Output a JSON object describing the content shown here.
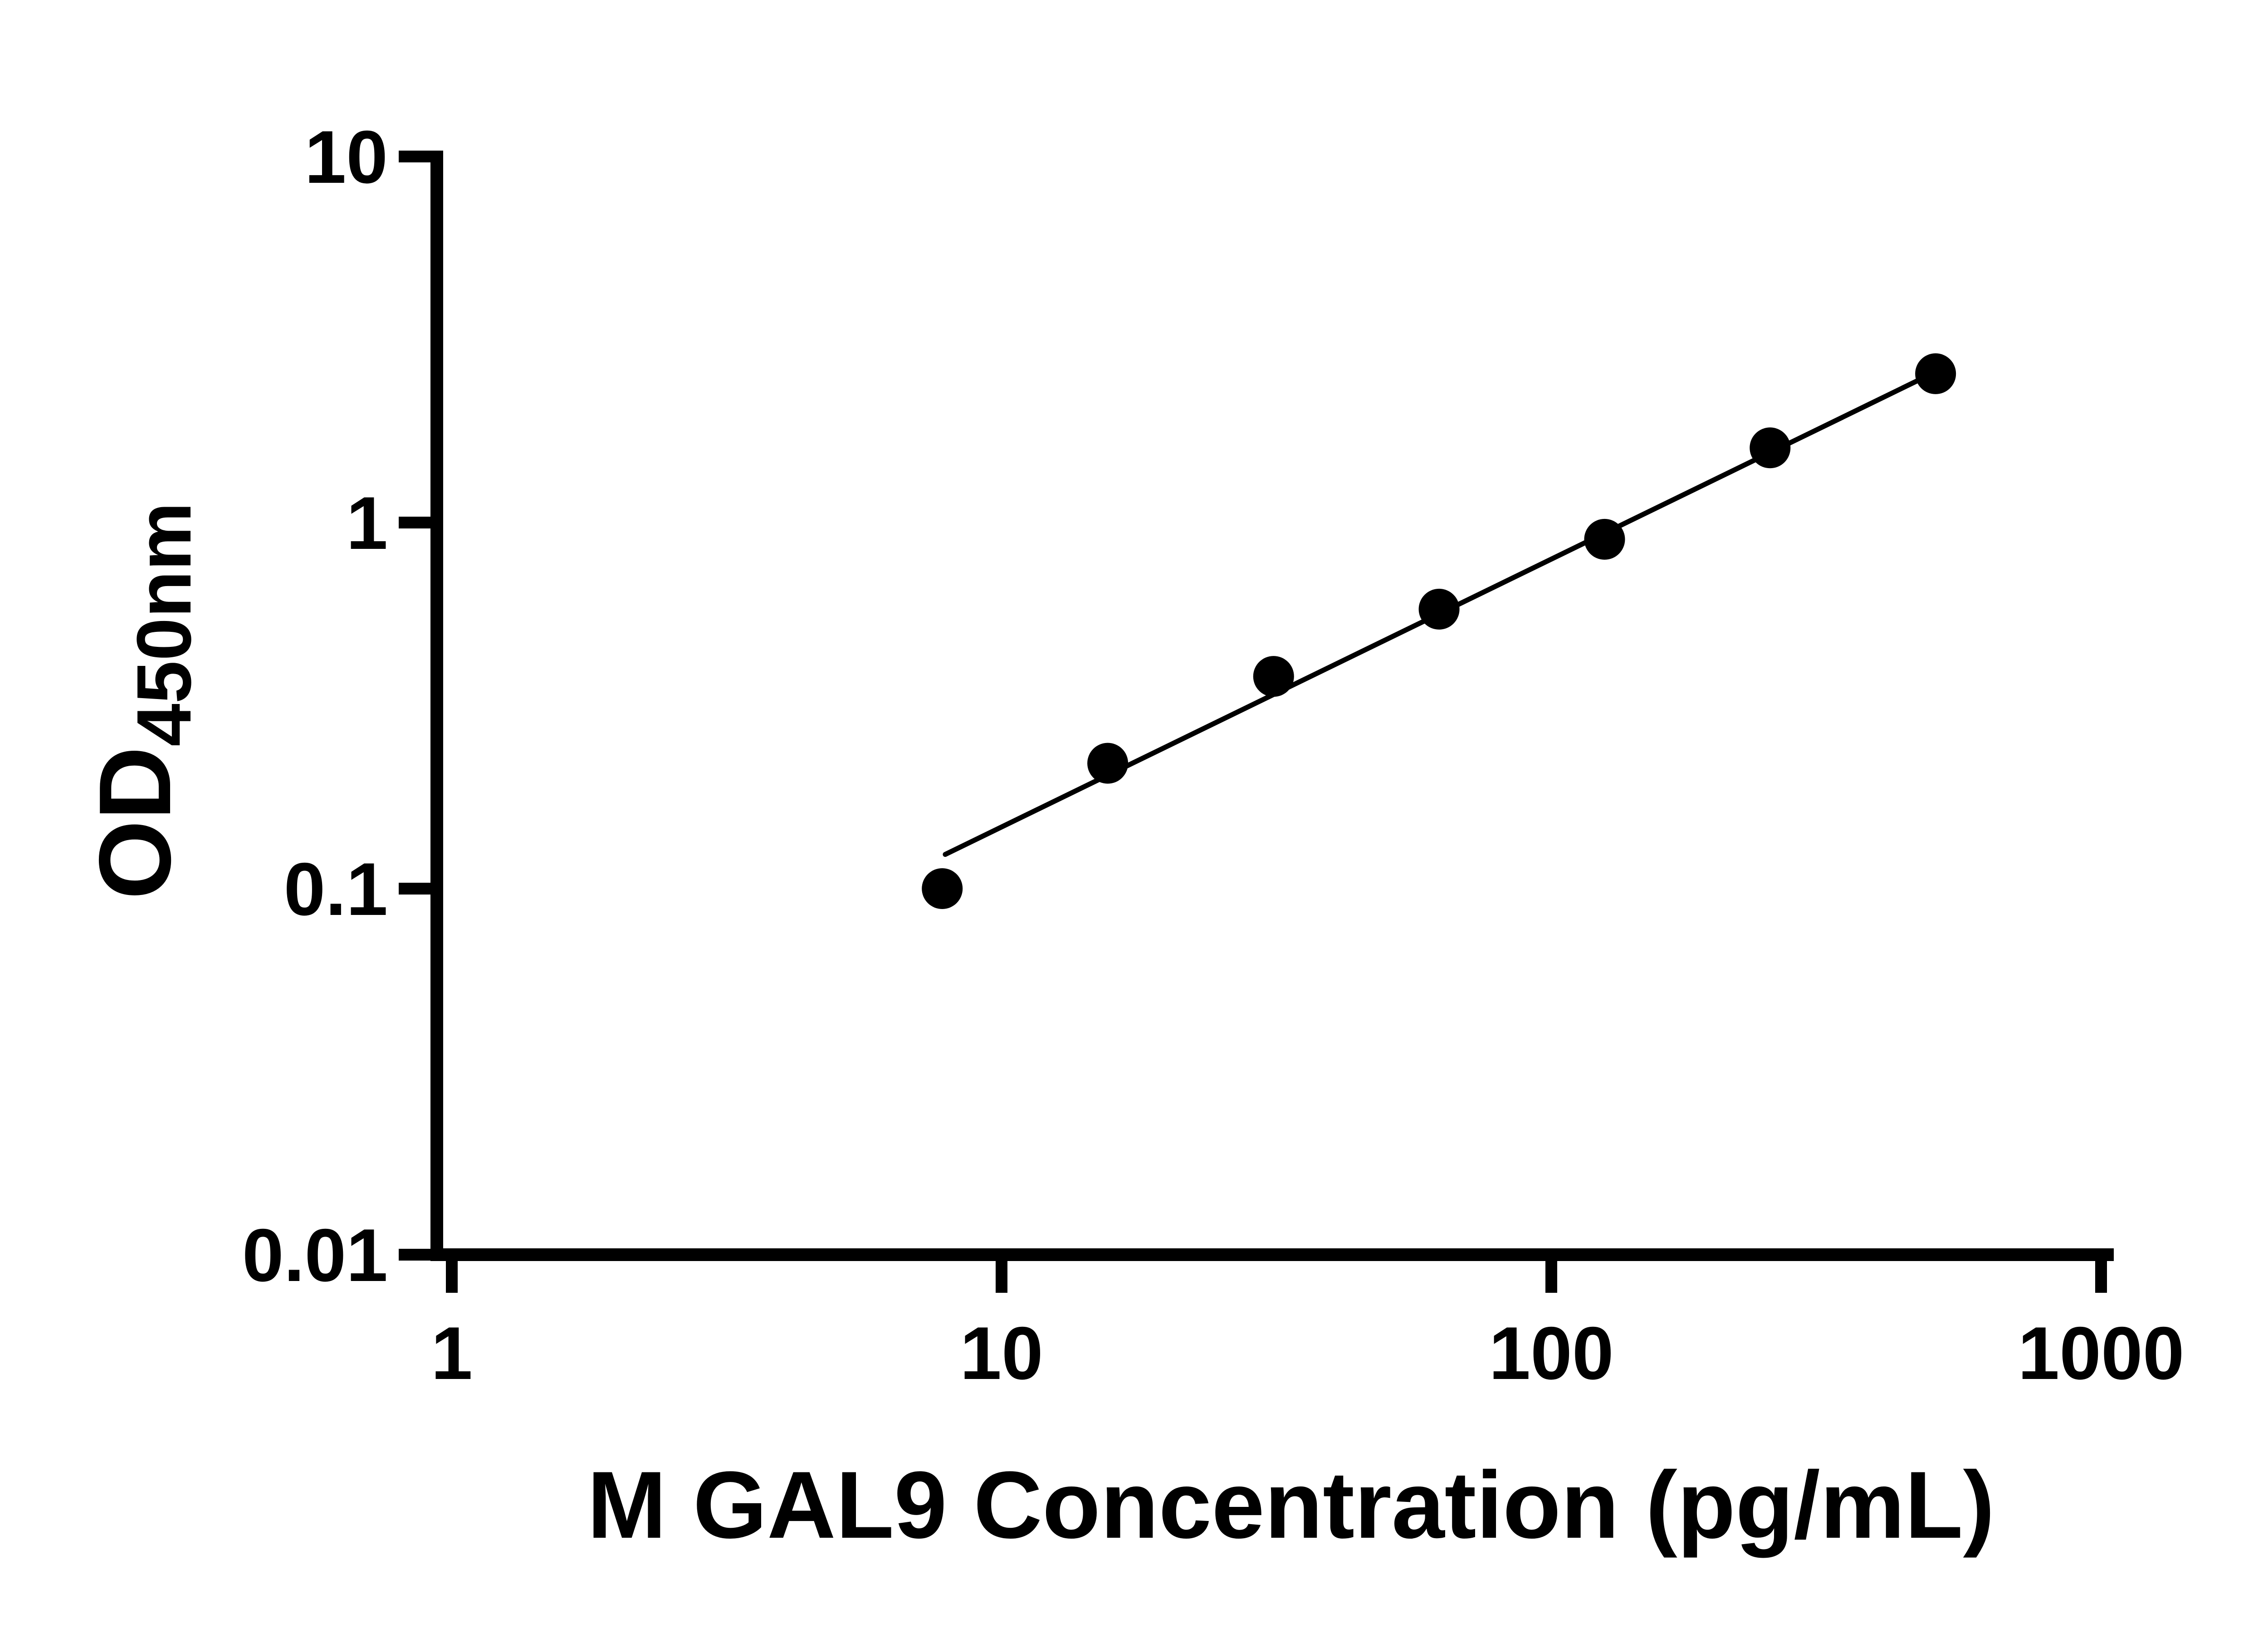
{
  "chart_data": {
    "type": "scatter",
    "title": "",
    "xlabel": "M GAL9 Concentration (pg/mL)",
    "ylabel_main": "OD",
    "ylabel_sub": "450nm",
    "x_scale": "log10",
    "y_scale": "log10",
    "xlim": [
      1,
      1000
    ],
    "ylim": [
      0.01,
      10
    ],
    "x_ticks": [
      "1",
      "10",
      "100",
      "1000"
    ],
    "y_ticks": [
      "0.01",
      "0.1",
      "1",
      "10"
    ],
    "grid": false,
    "legend": null,
    "axis_color": "#000000",
    "background": "#ffffff",
    "marker": {
      "shape": "circle",
      "color": "#000000"
    },
    "trendline": {
      "x1": 7.9,
      "y1": 0.124,
      "x2": 500,
      "y2": 2.58,
      "color": "#000000"
    },
    "points": [
      {
        "x": 7.8,
        "y": 0.1
      },
      {
        "x": 15.6,
        "y": 0.22
      },
      {
        "x": 31.25,
        "y": 0.38
      },
      {
        "x": 62.5,
        "y": 0.58
      },
      {
        "x": 125,
        "y": 0.9
      },
      {
        "x": 250,
        "y": 1.6
      },
      {
        "x": 500,
        "y": 2.55
      }
    ]
  }
}
